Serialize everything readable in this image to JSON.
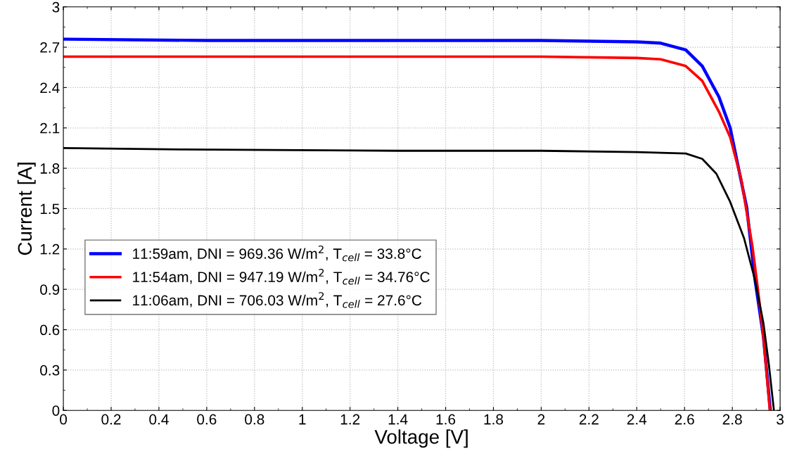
{
  "chart_data": {
    "type": "line",
    "xlabel": "Voltage [V]",
    "ylabel": "Current [A]",
    "xlim": [
      0,
      3
    ],
    "ylim": [
      0,
      3
    ],
    "xticks": [
      0,
      0.2,
      0.4,
      0.6,
      0.8,
      1,
      1.2,
      1.4,
      1.6,
      1.8,
      2,
      2.2,
      2.4,
      2.6,
      2.8,
      3
    ],
    "yticks": [
      0,
      0.3,
      0.6,
      0.9,
      1.2,
      1.5,
      1.8,
      2.1,
      2.4,
      2.7,
      3
    ],
    "grid": true,
    "legend": "center left",
    "marker": "none",
    "line_style": "solid",
    "series": [
      {
        "name": "11:59am, DNI = 969.36 W/m$^{2}$, T$_{cell}$ = 33.8°C",
        "color": "#0000ff",
        "x": [
          0,
          0.6,
          1.4,
          2.0,
          2.4,
          2.5,
          2.605,
          2.674,
          2.744,
          2.791,
          2.826,
          2.86,
          2.895,
          2.93,
          2.959
        ],
        "values": [
          2.76,
          2.75,
          2.75,
          2.75,
          2.74,
          2.73,
          2.68,
          2.56,
          2.33,
          2.1,
          1.8,
          1.51,
          0.97,
          0.55,
          0
        ]
      },
      {
        "name": "11:54am, DNI = 947.19 W/m$^{2}$, T$_{cell}$ = 34.76°C",
        "color": "#ff0000",
        "x": [
          0,
          0.6,
          1.4,
          2.0,
          2.4,
          2.5,
          2.605,
          2.674,
          2.744,
          2.791,
          2.837,
          2.884,
          2.907,
          2.93,
          2.957
        ],
        "values": [
          2.63,
          2.63,
          2.63,
          2.63,
          2.62,
          2.61,
          2.56,
          2.45,
          2.22,
          2.03,
          1.72,
          1.22,
          0.9,
          0.55,
          0
        ]
      },
      {
        "name": "11:06am, DNI = 706.03 W/m$^{2}$, T$_{cell}$ = 27.6°C",
        "color": "#000000",
        "x": [
          0,
          0.5,
          1.4,
          2.0,
          2.4,
          2.605,
          2.674,
          2.733,
          2.791,
          2.849,
          2.895,
          2.93,
          2.953,
          2.974
        ],
        "values": [
          1.95,
          1.94,
          1.93,
          1.93,
          1.92,
          1.91,
          1.87,
          1.76,
          1.55,
          1.28,
          0.97,
          0.65,
          0.34,
          0
        ]
      }
    ]
  }
}
